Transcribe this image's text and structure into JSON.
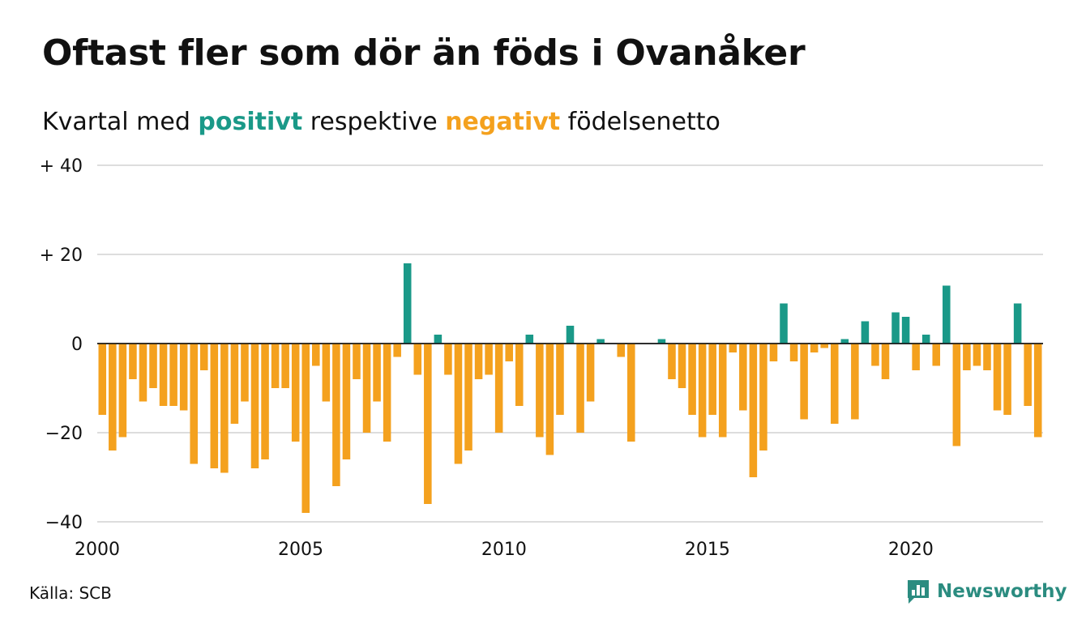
{
  "title": "Oftast fler som dör än föds i Ovanåker",
  "subtitle": {
    "before": "Kvartal med ",
    "positive": "positivt",
    "middle": " respektive ",
    "negative": "negativt",
    "after": " födelsenetto"
  },
  "source": "Källa: SCB",
  "logo": {
    "text": "Newsworthy",
    "icon": "bar-chart-speech-bubble-icon"
  },
  "colors": {
    "positive": "#1a9988",
    "negative": "#f4a11e",
    "grid": "#dddddd",
    "logo": "#2b8c80"
  },
  "chart_data": {
    "type": "bar",
    "x_start": 2000,
    "x_end": 2023.25,
    "bar_width_years": 0.25,
    "ylim": [
      -40,
      40
    ],
    "y_ticks": [
      {
        "value": 40,
        "label": "+ 40"
      },
      {
        "value": 20,
        "label": "+ 20"
      },
      {
        "value": 0,
        "label": "0"
      },
      {
        "value": -20,
        "label": "−20"
      },
      {
        "value": -40,
        "label": "−40"
      }
    ],
    "x_ticks": [
      {
        "value": 2000,
        "label": "2000"
      },
      {
        "value": 2005,
        "label": "2005"
      },
      {
        "value": 2010,
        "label": "2010"
      },
      {
        "value": 2015,
        "label": "2015"
      },
      {
        "value": 2020,
        "label": "2020"
      }
    ],
    "grid": true,
    "values": [
      -16,
      -24,
      -21,
      -8,
      -13,
      -10,
      -14,
      -14,
      -15,
      -27,
      -6,
      -28,
      -29,
      -18,
      -13,
      -28,
      -26,
      -10,
      -10,
      -22,
      -38,
      -5,
      -13,
      -32,
      -26,
      -8,
      -20,
      -13,
      -22,
      -3,
      18,
      -7,
      -36,
      2,
      -7,
      -27,
      -24,
      -8,
      -7,
      -20,
      -4,
      -14,
      2,
      -21,
      -25,
      -16,
      4,
      -20,
      -13,
      1,
      0,
      -3,
      -22,
      0,
      0,
      1,
      -8,
      -10,
      -16,
      -21,
      -16,
      -21,
      -2,
      -15,
      -30,
      -24,
      -4,
      9,
      -4,
      -17,
      -2,
      -1,
      -18,
      1,
      -17,
      5,
      -5,
      -8,
      7,
      6,
      -6,
      2,
      -5,
      13,
      -23,
      -6,
      -5,
      -6,
      -15,
      -16,
      9,
      -14,
      -21
    ]
  }
}
